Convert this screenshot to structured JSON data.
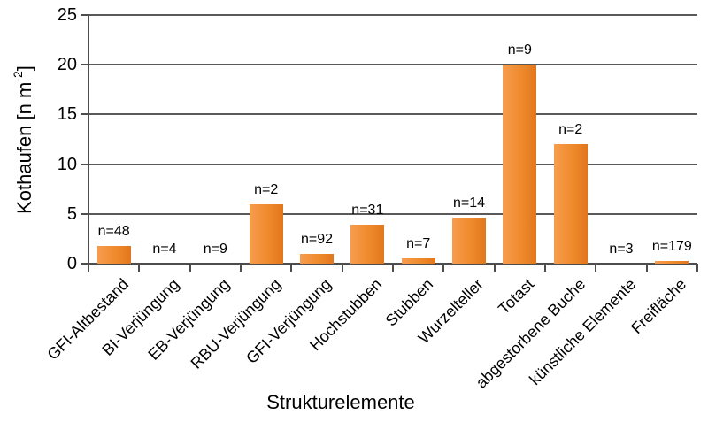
{
  "chart_data": {
    "type": "bar",
    "title": "",
    "xlabel": "Strukturelemente",
    "ylabel": "Kothaufen [n m⁻²]",
    "ylabel_parts": {
      "main": "Kothaufen [n m",
      "sup": "-2",
      "close": "]"
    },
    "categories": [
      "GFI-Altbestand",
      "BI-Verjüngung",
      "EB-Verjüngung",
      "RBU-Verjüngung",
      "GFI-Verjüngung",
      "Hochstubben",
      "Stubben",
      "Wurzelteller",
      "Totast",
      "abgestorbene Buche",
      "künstliche Elemente",
      "Freifläche"
    ],
    "values": [
      1.8,
      0,
      0,
      6,
      1,
      3.9,
      0.5,
      4.6,
      20,
      12,
      0,
      0.3
    ],
    "bar_labels": [
      "n=48",
      "n=4",
      "n=9",
      "n=2",
      "n=92",
      "n=31",
      "n=7",
      "n=14",
      "n=9",
      "n=2",
      "n=3",
      "n=179"
    ],
    "ylim": [
      0,
      25
    ],
    "yticks": [
      0,
      5,
      10,
      15,
      20,
      25
    ],
    "grid": true,
    "legend": false,
    "bar_color_left": "#F79C4F",
    "bar_color_mid": "#EF8A2C",
    "bar_color_right": "#E2761C",
    "axis_color": "#4D4D4D",
    "grid_color": "#595959",
    "text_color": "#000000"
  }
}
